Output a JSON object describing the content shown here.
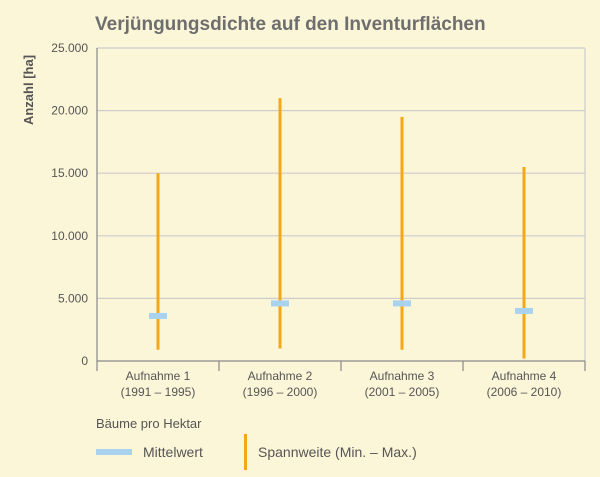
{
  "chart_data": {
    "type": "range",
    "title": "Verjüngungsdichte auf den Inventurflächen",
    "ylabel": "Anzahl [ha]",
    "xlabel": "",
    "ylim": [
      0,
      25000
    ],
    "yticks": [
      0,
      5000,
      10000,
      15000,
      20000,
      25000
    ],
    "ytick_labels": [
      "0",
      "5.000",
      "10.000",
      "15.000",
      "20.000",
      "25.000"
    ],
    "grid": "horizontal",
    "categories": [
      {
        "line1": "Aufnahme 1",
        "line2": "(1991 – 1995)"
      },
      {
        "line1": "Aufnahme 2",
        "line2": "(1996 – 2000)"
      },
      {
        "line1": "Aufnahme 3",
        "line2": "(2001 – 2005)"
      },
      {
        "line1": "Aufnahme 4",
        "line2": "(2006 – 2010)"
      }
    ],
    "series": [
      {
        "name": "Mittelwert",
        "values": [
          3600,
          4600,
          4600,
          4000
        ]
      },
      {
        "name": "Spannweite (Min. – Max.)",
        "min": [
          900,
          1000,
          900,
          200
        ],
        "max": [
          15000,
          21000,
          19500,
          15500
        ]
      }
    ],
    "legend_title": "Bäume pro Hektar",
    "legend_placement": "bottom-left",
    "colors": {
      "mean": "#a9d2ee",
      "range": "#f4a817",
      "grid": "#cccccc",
      "axis": "#888888"
    }
  }
}
